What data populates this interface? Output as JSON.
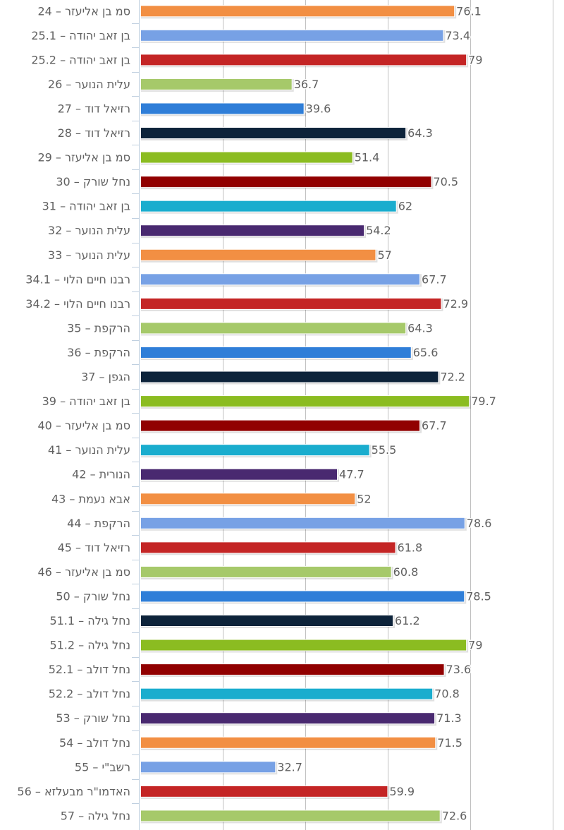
{
  "chart_data": {
    "type": "bar",
    "orientation": "horizontal",
    "title": "",
    "xlabel": "",
    "ylabel": "",
    "xlim": [
      0,
      100
    ],
    "gridline_step": 20,
    "grid": true,
    "legend": "none",
    "categories": [
      "סמ בן אליעזר – 24",
      "בן זאב יהודה – 25.1",
      "בן זאב יהודה – 25.2",
      "עלית הנוער – 26",
      "רזיאל דוד – 27",
      "רזיאל דוד – 28",
      "סמ בן אליעזר – 29",
      "נחל שורק – 30",
      "בן זאב יהודה – 31",
      "עלית הנוער – 32",
      "עלית הנוער – 33",
      "רבנו חיים הלוי – 34.1",
      "רבנו חיים הלוי – 34.2",
      "הרקפת – 35",
      "הרקפת – 36",
      "הגפן – 37",
      "בן זאב יהודה – 39",
      "סמ בן אליעזר – 40",
      "עלית הנוער – 41",
      "הנורית – 42",
      "אבא נעמת – 43",
      "הרקפת – 44",
      "רזיאל דוד – 45",
      "סמ בן אליעזר – 46",
      "נחל שורק – 50",
      "נחל גילה – 51.1",
      "נחל גילה – 51.2",
      "נחל דולב – 52.1",
      "נחל דולב – 52.2",
      "נחל שורק – 53",
      "נחל דולב – 54",
      "רשב\"י – 55",
      "האדמו\"ר מבעלזא – 56",
      "נחל גילה – 57"
    ],
    "values": [
      76.1,
      73.4,
      79,
      36.7,
      39.6,
      64.3,
      51.4,
      70.5,
      62,
      54.2,
      57,
      67.7,
      72.9,
      64.3,
      65.6,
      72.2,
      79.7,
      67.7,
      55.5,
      47.7,
      52,
      78.6,
      61.8,
      60.8,
      78.5,
      61.2,
      79,
      73.6,
      70.8,
      71.3,
      71.5,
      32.7,
      59.9,
      72.6
    ],
    "value_labels": [
      "76.1",
      "73.4",
      "79",
      "36.7",
      "39.6",
      "64.3",
      "51.4",
      "70.5",
      "62",
      "54.2",
      "57",
      "67.7",
      "72.9",
      "64.3",
      "65.6",
      "72.2",
      "79.7",
      "67.7",
      "55.5",
      "47.7",
      "52",
      "78.6",
      "61.8",
      "60.8",
      "78.5",
      "61.2",
      "79",
      "73.6",
      "70.8",
      "71.3",
      "71.5",
      "32.7",
      "59.9",
      "72.6"
    ],
    "colors": [
      "#910000",
      "#1aadce",
      "#492970",
      "#f28f43",
      "#77a1e5",
      "#c42525",
      "#a6c96a",
      "#2f7ed8",
      "#0d233a",
      "#8bbc21"
    ]
  }
}
